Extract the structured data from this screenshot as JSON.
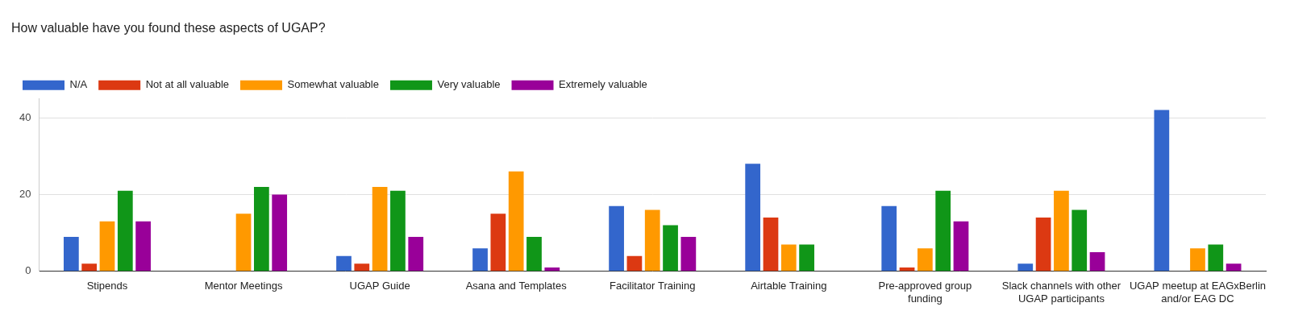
{
  "chart_data": {
    "type": "bar",
    "title": "How valuable have you found these aspects of UGAP?",
    "categories": [
      "Stipends",
      "Mentor Meetings",
      "UGAP Guide",
      "Asana and Templates",
      "Facilitator Training",
      "Airtable Training",
      "Pre-approved group funding",
      "Slack channels with other UGAP participants",
      "UGAP meetup at EAGxBerlin and/or EAG DC"
    ],
    "series": [
      {
        "name": "N/A",
        "color": "#3366cc",
        "values": [
          9,
          0,
          4,
          6,
          17,
          28,
          17,
          2,
          42
        ]
      },
      {
        "name": "Not at all valuable",
        "color": "#dc3912",
        "values": [
          2,
          0,
          2,
          15,
          4,
          14,
          1,
          14,
          0
        ]
      },
      {
        "name": "Somewhat valuable",
        "color": "#ff9900",
        "values": [
          13,
          15,
          22,
          26,
          16,
          7,
          6,
          21,
          6
        ]
      },
      {
        "name": "Very valuable",
        "color": "#109618",
        "values": [
          21,
          22,
          21,
          9,
          12,
          7,
          21,
          16,
          7
        ]
      },
      {
        "name": "Extremely valuable",
        "color": "#990099",
        "values": [
          13,
          20,
          9,
          1,
          9,
          0,
          13,
          5,
          2
        ]
      }
    ],
    "ylim": [
      0,
      45
    ],
    "yticks": [
      0,
      20,
      40
    ],
    "grid": true,
    "legend": "top-left"
  }
}
